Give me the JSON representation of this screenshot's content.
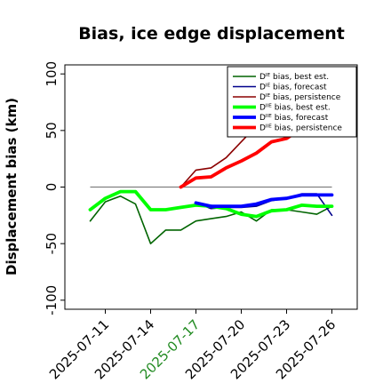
{
  "chart_data": {
    "type": "line",
    "title": "Bias, ice edge displacement",
    "ylabel": "Displacement bias (km)",
    "xlabel": "",
    "ylim": [
      -108,
      108
    ],
    "yticks": [
      -100,
      -50,
      0,
      50,
      100
    ],
    "grid": false,
    "legend_position": "top-right",
    "zero_line": 0,
    "x": [
      "2025-07-10",
      "2025-07-11",
      "2025-07-12",
      "2025-07-13",
      "2025-07-14",
      "2025-07-15",
      "2025-07-16",
      "2025-07-17",
      "2025-07-18",
      "2025-07-19",
      "2025-07-20",
      "2025-07-21",
      "2025-07-22",
      "2025-07-23",
      "2025-07-24",
      "2025-07-25",
      "2025-07-26"
    ],
    "xticks": [
      {
        "label": "2025-07-11",
        "color": "#000000"
      },
      {
        "label": "2025-07-14",
        "color": "#000000"
      },
      {
        "label": "2025-07-17",
        "color": "#228b22"
      },
      {
        "label": "2025-07-20",
        "color": "#000000"
      },
      {
        "label": "2025-07-23",
        "color": "#000000"
      },
      {
        "label": "2025-07-26",
        "color": "#000000"
      }
    ],
    "series": [
      {
        "name": "Dᴵᴱ bias, best est.",
        "color": "#006400",
        "width": 1.6,
        "values": [
          -30,
          -13,
          -8,
          -15,
          -50,
          -38,
          -38,
          -30,
          -28,
          -26,
          -22,
          -30,
          -20,
          -20,
          -22,
          -24,
          -17
        ]
      },
      {
        "name": "Dᴵᴱ bias, forecast",
        "color": "#00008b",
        "width": 1.6,
        "values": [
          null,
          null,
          null,
          null,
          null,
          null,
          null,
          -14,
          -19,
          -18,
          -18,
          -17,
          -12,
          -10,
          -6,
          -6,
          -25
        ]
      },
      {
        "name": "Dᴵᴱ bias, persistence",
        "color": "#8b0000",
        "width": 1.6,
        "values": [
          null,
          null,
          null,
          null,
          null,
          null,
          0,
          15,
          17,
          26,
          40,
          54,
          64,
          84,
          null,
          null,
          null
        ]
      },
      {
        "name": "Dᴵᴵᴱ bias, best est.",
        "color": "#00ff00",
        "width": 3.8,
        "values": [
          -20,
          -10,
          -4,
          -4,
          -20,
          -20,
          -18,
          -16,
          -17,
          -19,
          -24,
          -26,
          -21,
          -20,
          -16,
          -17,
          -17
        ]
      },
      {
        "name": "Dᴵᴵᴱ bias, forecast",
        "color": "#0000ff",
        "width": 3.8,
        "values": [
          null,
          null,
          null,
          null,
          null,
          null,
          null,
          -14,
          -17,
          -17,
          -17,
          -15,
          -11,
          -10,
          -7,
          -7,
          -7
        ]
      },
      {
        "name": "Dᴵᴵᴱ bias, persistence",
        "color": "#ff0000",
        "width": 3.8,
        "values": [
          null,
          null,
          null,
          null,
          null,
          null,
          0,
          8,
          9,
          17,
          23,
          30,
          40,
          43,
          52,
          55,
          59
        ]
      }
    ]
  }
}
